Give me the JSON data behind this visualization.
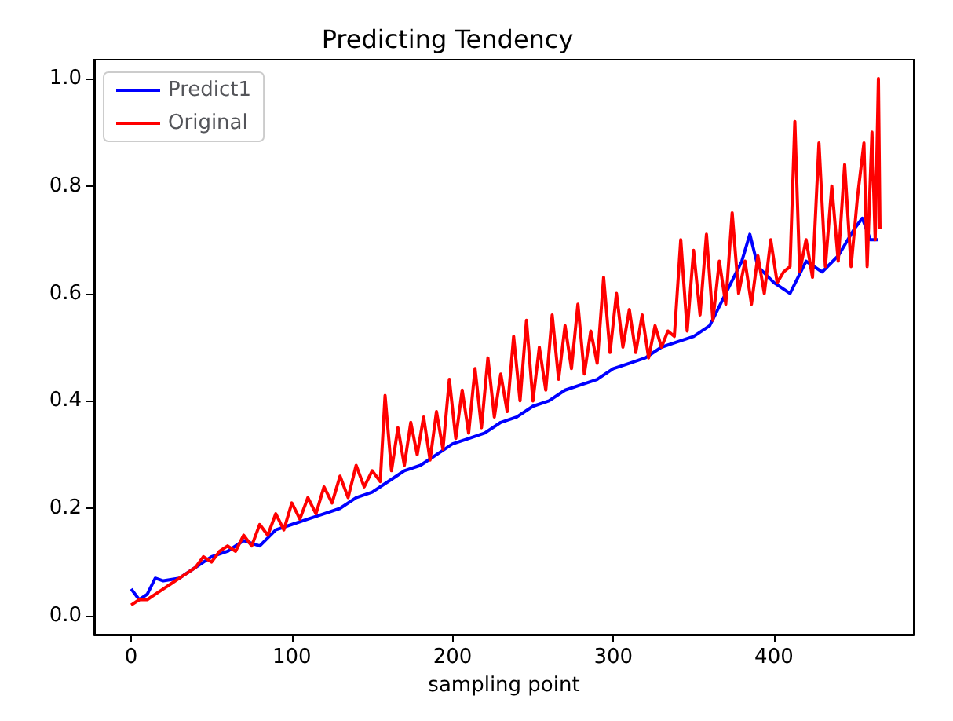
{
  "chart_data": {
    "type": "line",
    "title": "Predicting Tendency",
    "xlabel": "sampling point",
    "xlim": [
      -23,
      487
    ],
    "xticks": [
      0,
      100,
      200,
      300,
      400
    ],
    "ylim": [
      -0.035,
      1.035
    ],
    "yticks": [
      {
        "value": 0,
        "label": "0.0"
      },
      0.2,
      0.4,
      0.6,
      0.8,
      {
        "value": 1,
        "label": "1.0"
      }
    ],
    "grid": false,
    "legend": "top left",
    "marker": "none",
    "line_style": "solid",
    "series": [
      {
        "name": "Predict1",
        "color": "#0000ff",
        "x": [
          0,
          5,
          10,
          15,
          20,
          30,
          40,
          50,
          60,
          70,
          80,
          90,
          100,
          110,
          120,
          130,
          140,
          150,
          160,
          170,
          180,
          190,
          200,
          210,
          220,
          230,
          240,
          250,
          260,
          270,
          280,
          290,
          300,
          310,
          320,
          330,
          340,
          350,
          360,
          370,
          380,
          385,
          390,
          400,
          410,
          420,
          430,
          440,
          450,
          455,
          460,
          465
        ],
        "values": [
          0.05,
          0.03,
          0.04,
          0.07,
          0.065,
          0.07,
          0.09,
          0.11,
          0.12,
          0.14,
          0.13,
          0.16,
          0.17,
          0.18,
          0.19,
          0.2,
          0.22,
          0.23,
          0.25,
          0.27,
          0.28,
          0.3,
          0.32,
          0.33,
          0.34,
          0.36,
          0.37,
          0.39,
          0.4,
          0.42,
          0.43,
          0.44,
          0.46,
          0.47,
          0.48,
          0.5,
          0.51,
          0.52,
          0.54,
          0.6,
          0.66,
          0.71,
          0.65,
          0.62,
          0.6,
          0.66,
          0.64,
          0.67,
          0.72,
          0.74,
          0.7,
          0.7
        ]
      },
      {
        "name": "Original",
        "color": "#ff0000",
        "x": [
          0,
          5,
          10,
          15,
          20,
          25,
          30,
          35,
          40,
          45,
          50,
          55,
          60,
          65,
          70,
          75,
          80,
          85,
          90,
          95,
          100,
          105,
          110,
          115,
          120,
          125,
          130,
          135,
          140,
          145,
          150,
          155,
          158,
          162,
          166,
          170,
          174,
          178,
          182,
          186,
          190,
          194,
          198,
          202,
          206,
          210,
          214,
          218,
          222,
          226,
          230,
          234,
          238,
          242,
          246,
          250,
          254,
          258,
          262,
          266,
          270,
          274,
          278,
          282,
          286,
          290,
          294,
          298,
          302,
          306,
          310,
          314,
          318,
          322,
          326,
          330,
          334,
          338,
          342,
          346,
          350,
          354,
          358,
          362,
          366,
          370,
          374,
          378,
          382,
          386,
          390,
          394,
          398,
          402,
          406,
          410,
          413,
          416,
          420,
          424,
          428,
          432,
          436,
          440,
          444,
          448,
          452,
          456,
          458,
          461,
          463,
          465,
          466
        ],
        "values": [
          0.02,
          0.03,
          0.03,
          0.04,
          0.05,
          0.06,
          0.07,
          0.08,
          0.09,
          0.11,
          0.1,
          0.12,
          0.13,
          0.12,
          0.15,
          0.13,
          0.17,
          0.15,
          0.19,
          0.16,
          0.21,
          0.18,
          0.22,
          0.19,
          0.24,
          0.21,
          0.26,
          0.22,
          0.28,
          0.24,
          0.27,
          0.25,
          0.41,
          0.27,
          0.35,
          0.28,
          0.36,
          0.3,
          0.37,
          0.29,
          0.38,
          0.31,
          0.44,
          0.33,
          0.42,
          0.34,
          0.46,
          0.35,
          0.48,
          0.37,
          0.45,
          0.38,
          0.52,
          0.4,
          0.55,
          0.4,
          0.5,
          0.42,
          0.56,
          0.44,
          0.54,
          0.46,
          0.58,
          0.45,
          0.53,
          0.47,
          0.63,
          0.49,
          0.6,
          0.5,
          0.57,
          0.49,
          0.56,
          0.48,
          0.54,
          0.5,
          0.53,
          0.52,
          0.7,
          0.53,
          0.68,
          0.56,
          0.71,
          0.55,
          0.66,
          0.58,
          0.75,
          0.6,
          0.66,
          0.58,
          0.67,
          0.6,
          0.7,
          0.62,
          0.64,
          0.65,
          0.92,
          0.64,
          0.7,
          0.63,
          0.88,
          0.65,
          0.8,
          0.66,
          0.84,
          0.65,
          0.78,
          0.88,
          0.65,
          0.9,
          0.7,
          1.0,
          0.72
        ]
      }
    ]
  }
}
